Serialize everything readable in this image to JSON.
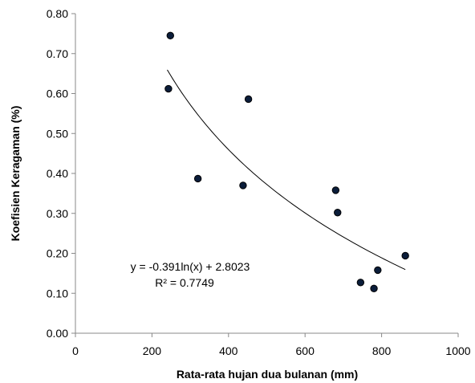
{
  "chart_data": {
    "type": "scatter",
    "xlabel": "Rata-rata hujan dua bulanan (mm)",
    "ylabel": "Koefisien Keragaman (%)",
    "xlim": [
      0,
      1000
    ],
    "ylim": [
      0.0,
      0.8
    ],
    "xticks": [
      "0",
      "200",
      "400",
      "600",
      "800",
      "1000"
    ],
    "yticks": [
      "0.00",
      "0.10",
      "0.20",
      "0.30",
      "0.40",
      "0.50",
      "0.60",
      "0.70",
      "0.80"
    ],
    "grid": false,
    "legend": false,
    "colors": {
      "marker_fill": "#0b1d3a",
      "marker_stroke": "#000000",
      "trendline": "#000000",
      "axis": "#888888"
    },
    "series": [
      {
        "points": [
          {
            "x": 243,
            "y": 0.612
          },
          {
            "x": 248,
            "y": 0.745
          },
          {
            "x": 320,
            "y": 0.387
          },
          {
            "x": 438,
            "y": 0.37
          },
          {
            "x": 452,
            "y": 0.586
          },
          {
            "x": 680,
            "y": 0.358
          },
          {
            "x": 685,
            "y": 0.302
          },
          {
            "x": 745,
            "y": 0.127
          },
          {
            "x": 780,
            "y": 0.112
          },
          {
            "x": 790,
            "y": 0.158
          },
          {
            "x": 862,
            "y": 0.194
          }
        ]
      }
    ],
    "trendline": {
      "type": "logarithmic",
      "a": -0.391,
      "b": 2.8023,
      "x_from": 240,
      "x_to": 862
    },
    "annotations": {
      "equation": "y = -0.391ln(x) + 2.8023",
      "r_squared": "R² = 0.7749"
    }
  }
}
